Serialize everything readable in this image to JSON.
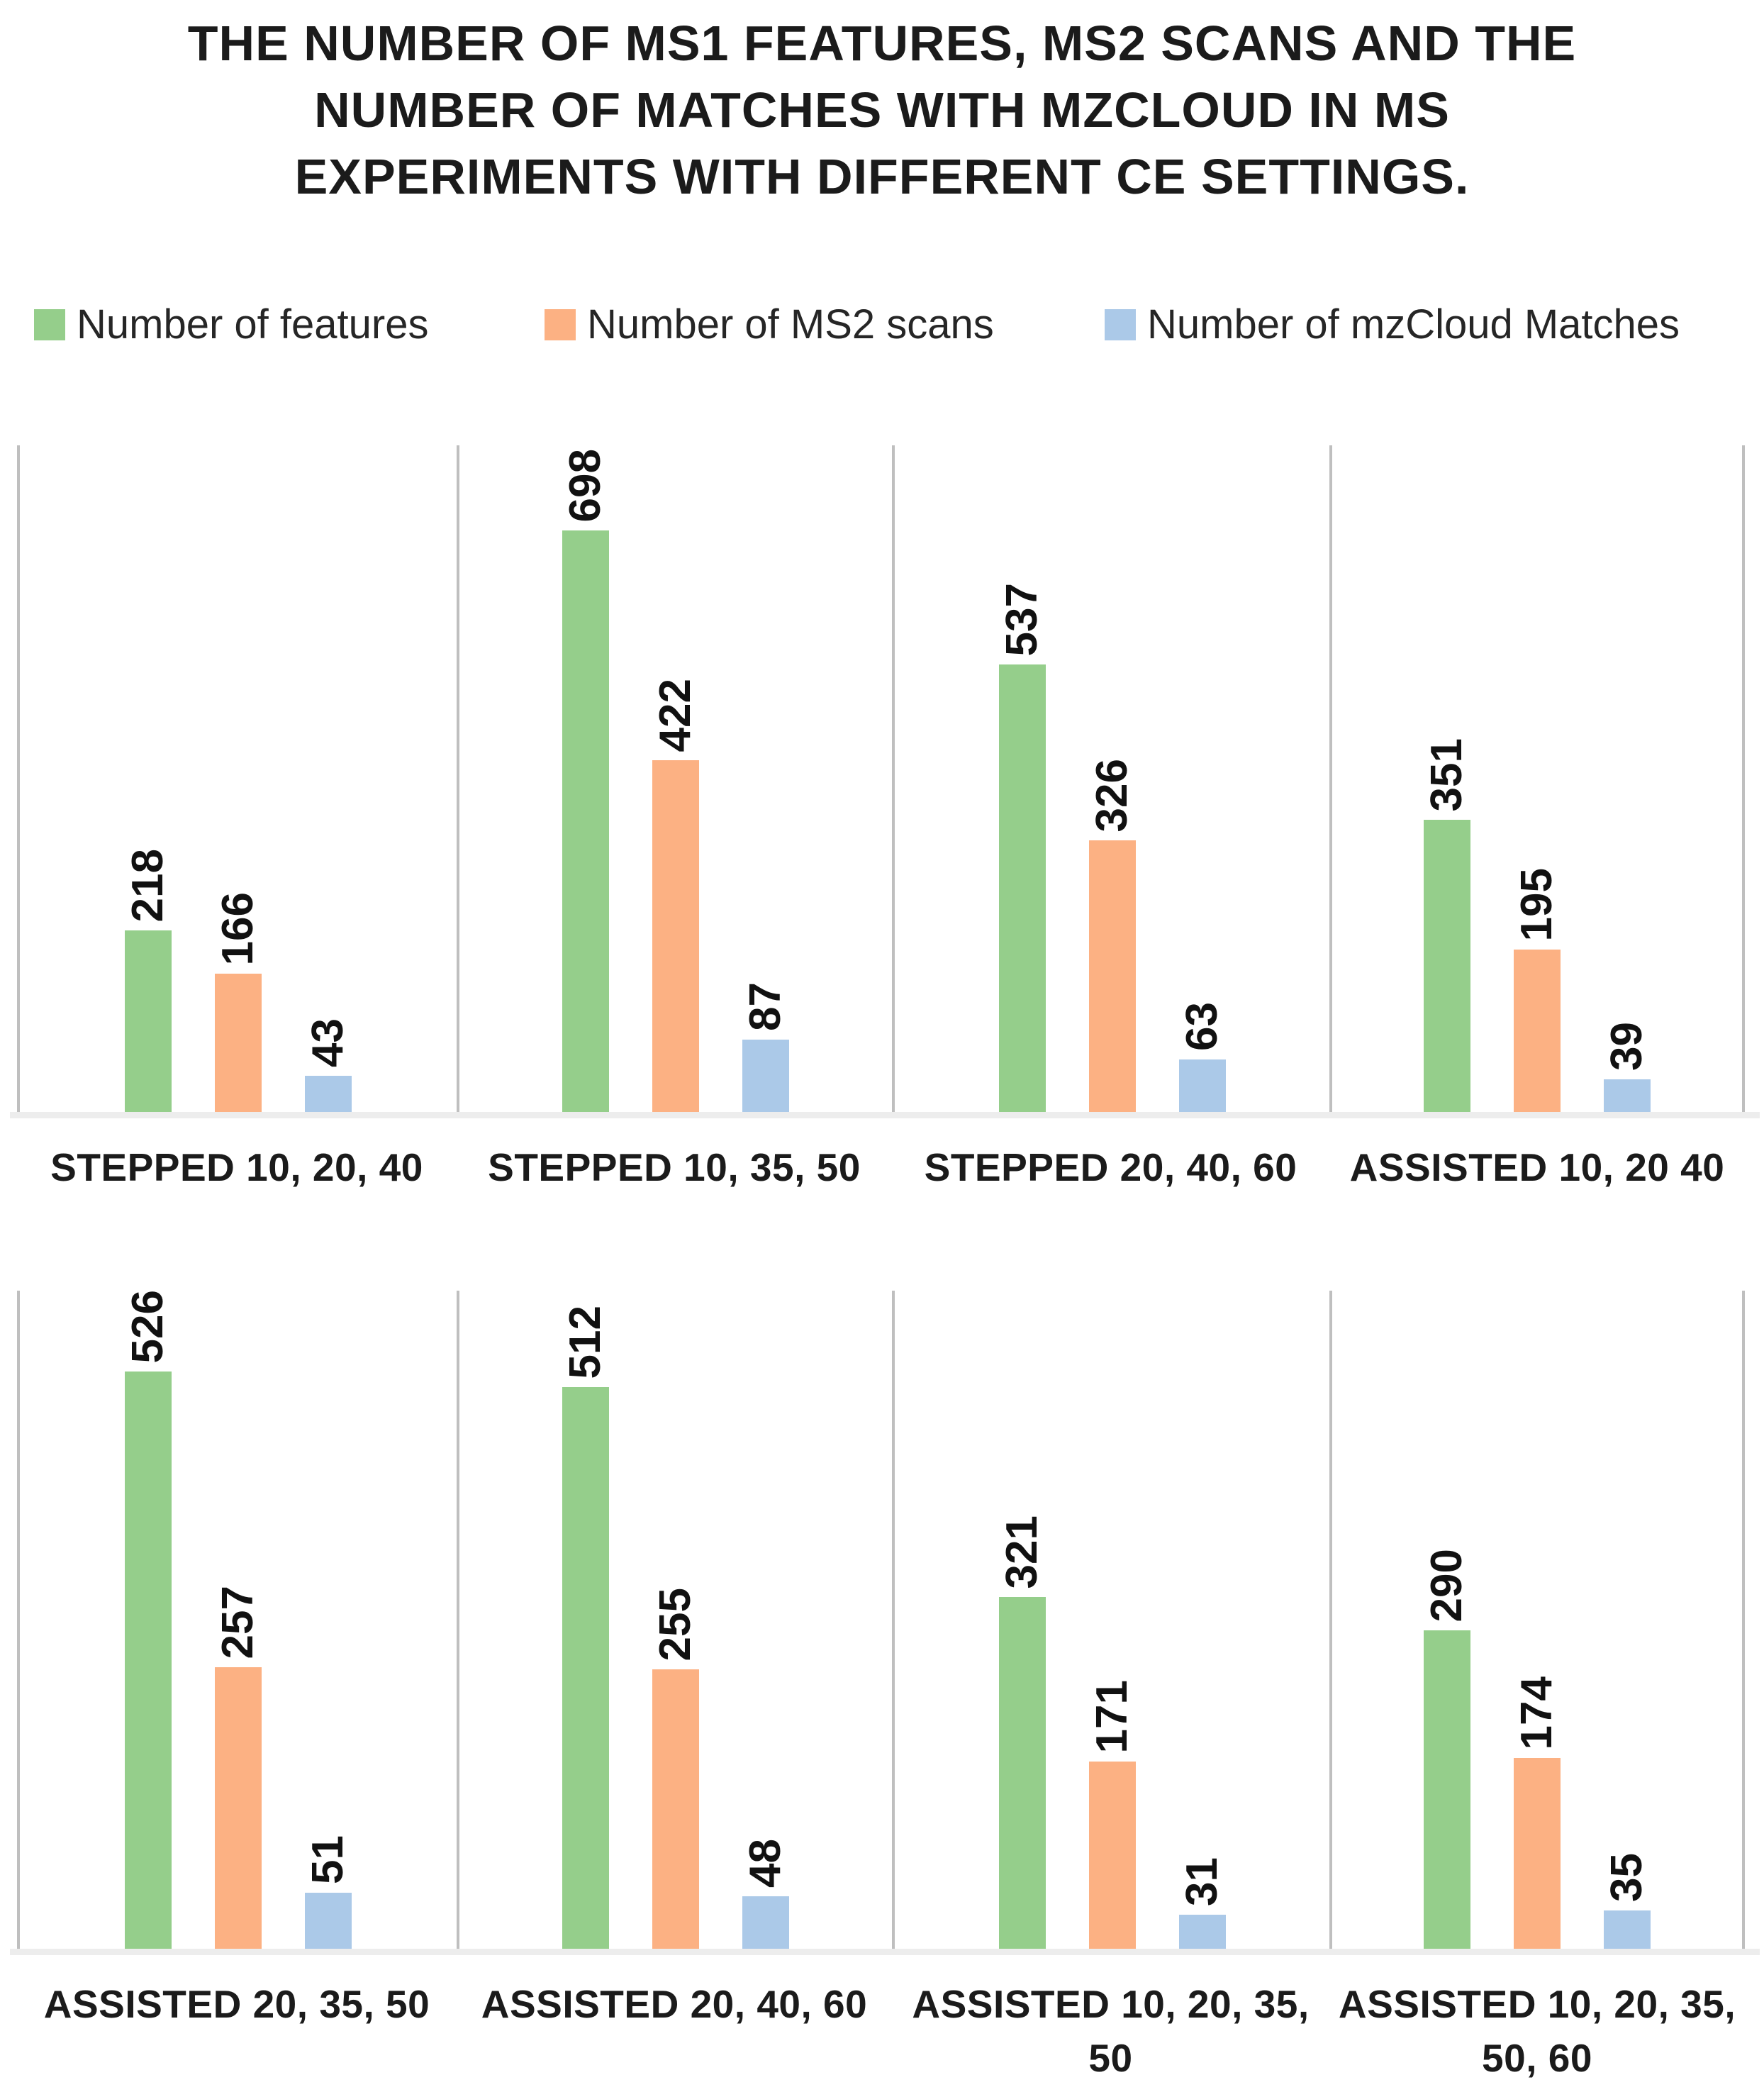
{
  "title_display": "THE NUMBER OF MS1 FEATURES, MS2 SCANS AND THE\nNUMBER OF MATCHES WITH MZCLOUD IN MS\nEXPERIMENTS WITH DIFFERENT CE SETTINGS.",
  "chart_data": {
    "type": "bar",
    "title": "THE NUMBER OF MS1 FEATURES, MS2 SCANS AND THE NUMBER OF MATCHES WITH MZCLOUD IN MS EXPERIMENTS WITH DIFFERENT CE SETTINGS.",
    "legend_position": "top",
    "grid": false,
    "data_labels": "values shown above each bar, rotated 90 degrees counterclockwise, bold",
    "categories": [
      "STEPPED 10, 20, 40",
      "STEPPED 10, 35, 50",
      "STEPPED 20, 40, 60",
      "ASSISTED 10, 20 40",
      "ASSISTED 20, 35, 50",
      "ASSISTED 20, 40, 60",
      "ASSISTED 10, 20, 35, 50",
      "ASSISTED 10, 20, 35, 50, 60"
    ],
    "categories_display": [
      "STEPPED 10, 20, 40",
      "STEPPED 10, 35, 50",
      "STEPPED 20, 40, 60",
      "ASSISTED 10, 20 40",
      "ASSISTED 20, 35, 50",
      "ASSISTED 20, 40, 60",
      "ASSISTED 10, 20, 35,\n50",
      "ASSISTED 10, 20, 35,\n50, 60"
    ],
    "series": [
      {
        "name": "Number of features",
        "color": "#95CE8B",
        "values": [
          218,
          698,
          537,
          351,
          526,
          512,
          321,
          290
        ]
      },
      {
        "name": "Number of MS2 scans",
        "color": "#FCB183",
        "values": [
          166,
          422,
          326,
          195,
          257,
          255,
          171,
          174
        ]
      },
      {
        "name": "Number of mzCloud Matches",
        "color": "#ABC9E8",
        "values": [
          43,
          87,
          63,
          39,
          51,
          48,
          31,
          35
        ]
      }
    ],
    "rows": [
      {
        "category_indexes": [
          0,
          1,
          2,
          3
        ],
        "ylim": [
          0,
          800
        ]
      },
      {
        "category_indexes": [
          4,
          5,
          6,
          7
        ],
        "ylim": [
          0,
          600
        ]
      }
    ],
    "colors": {
      "panel_divider": "#BFBFBF",
      "axis_strip": "#EDEDED",
      "text": "#1B1B1B"
    }
  }
}
